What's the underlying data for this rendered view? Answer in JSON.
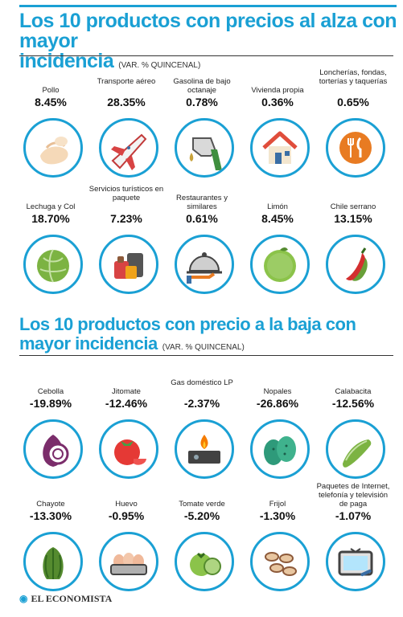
{
  "headings": {
    "up_title_1": "Los 10 productos con precios al alza con mayor",
    "up_title_2": "incidencia",
    "up_note": "(VAR. % QUINCENAL)",
    "down_title_1": "Los 10 productos con precio a la baja con",
    "down_title_2": "mayor incidencia",
    "down_note": "(VAR. % QUINCENAL)"
  },
  "chart_data": [
    {
      "type": "table",
      "title": "Los 10 productos con precios al alza con mayor incidencia",
      "subtitle": "(VAR. % QUINCENAL)",
      "rows": [
        [
          {
            "label": "Pollo",
            "value": "8.45%",
            "icon": "chicken-icon"
          },
          {
            "label": "Transporte aéreo",
            "value": "28.35%",
            "icon": "airplane-icon"
          },
          {
            "label": "Gasolina de bajo octanaje",
            "value": "0.78%",
            "icon": "fuel-nozzle-icon"
          },
          {
            "label": "Vivienda propia",
            "value": "0.36%",
            "icon": "house-icon"
          },
          {
            "label": "Loncherías, fondas, torterías y taquerías",
            "value": "0.65%",
            "icon": "fork-knife-icon"
          }
        ],
        [
          {
            "label": "Lechuga y Col",
            "value": "18.70%",
            "icon": "lettuce-icon"
          },
          {
            "label": "Servicios turísticos en paquete",
            "value": "7.23%",
            "icon": "luggage-icon"
          },
          {
            "label": "Restaurantes y similares",
            "value": "0.61%",
            "icon": "cloche-icon"
          },
          {
            "label": "Limón",
            "value": "8.45%",
            "icon": "lime-icon"
          },
          {
            "label": "Chile serrano",
            "value": "13.15%",
            "icon": "chili-icon"
          }
        ]
      ]
    },
    {
      "type": "table",
      "title": "Los 10 productos con precio a la baja con mayor incidencia",
      "subtitle": "(VAR. % QUINCENAL)",
      "rows": [
        [
          {
            "label": "Cebolla",
            "value": "-19.89%",
            "icon": "onion-icon"
          },
          {
            "label": "Jitomate",
            "value": "-12.46%",
            "icon": "tomato-icon"
          },
          {
            "label": "Gas doméstico LP",
            "value": "-2.37%",
            "icon": "gas-stove-icon"
          },
          {
            "label": "Nopales",
            "value": "-26.86%",
            "icon": "cactus-pad-icon"
          },
          {
            "label": "Calabacita",
            "value": "-12.56%",
            "icon": "zucchini-icon"
          }
        ],
        [
          {
            "label": "Chayote",
            "value": "-13.30%",
            "icon": "chayote-icon"
          },
          {
            "label": "Huevo",
            "value": "-0.95%",
            "icon": "eggs-icon"
          },
          {
            "label": "Tomate verde",
            "value": "-5.20%",
            "icon": "green-tomato-icon"
          },
          {
            "label": "Frijol",
            "value": "-1.30%",
            "icon": "beans-icon"
          },
          {
            "label": "Paquetes de Internet, telefonía y televisión de paga",
            "value": "-1.07%",
            "icon": "tv-icon"
          }
        ]
      ]
    }
  ],
  "footer": {
    "brand": "EL ECONOMISTA"
  },
  "colors": {
    "accent": "#1aa0d4"
  }
}
